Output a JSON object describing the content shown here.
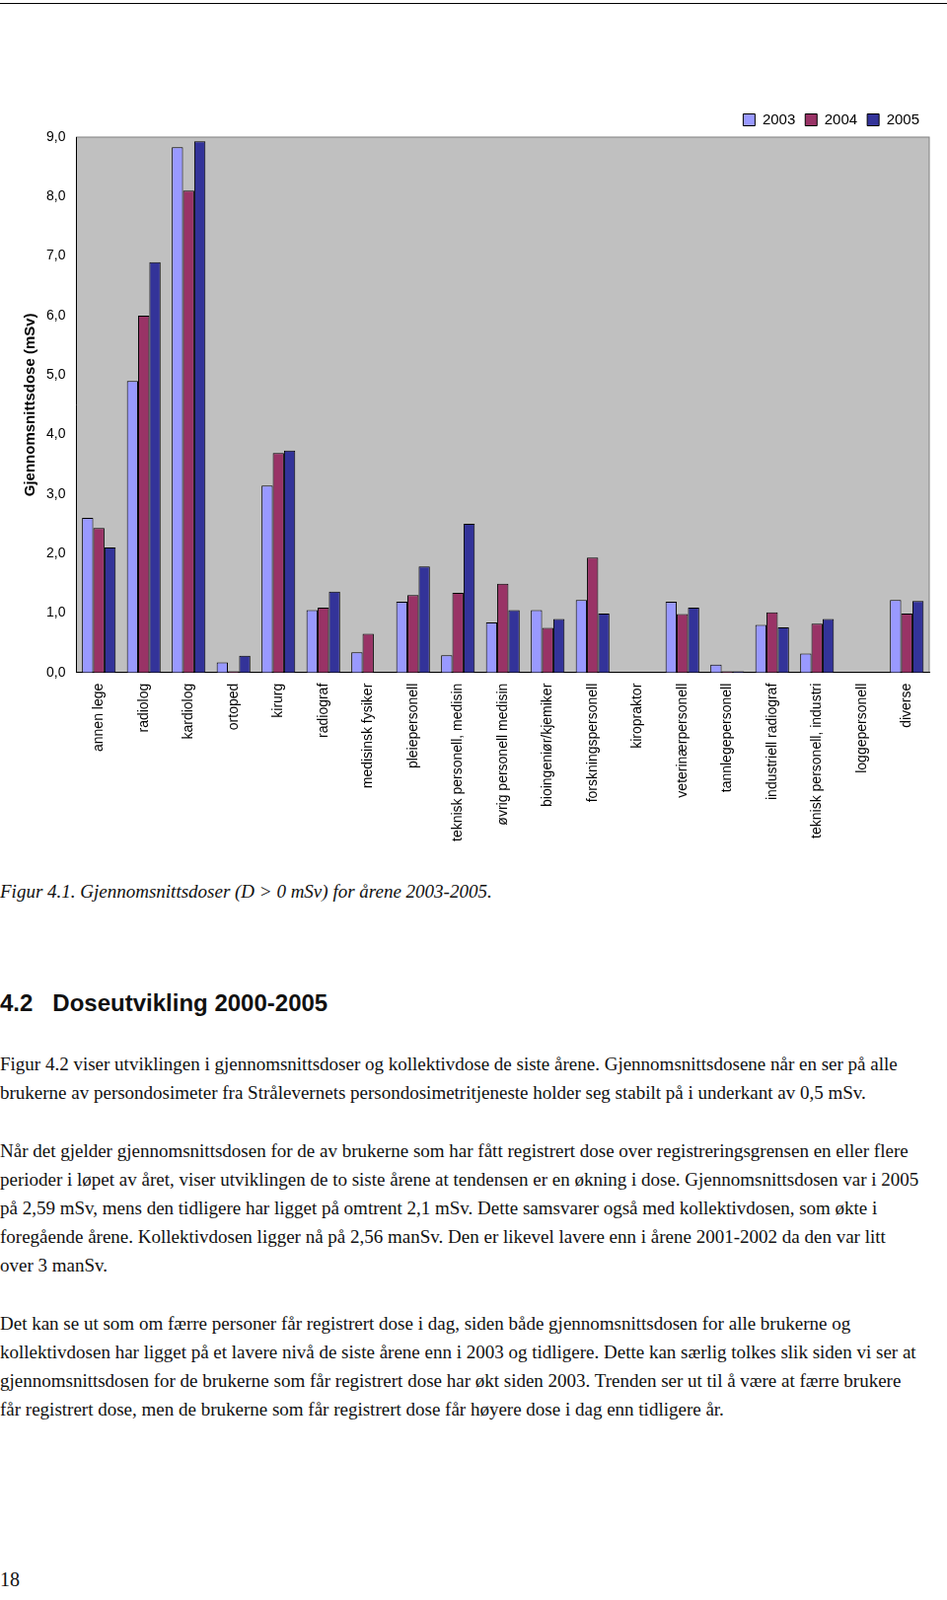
{
  "chart_data": {
    "type": "bar",
    "y_label": "Gjennomsnittsdose (mSv)",
    "categories": [
      "annen lege",
      "radiolog",
      "kardiolog",
      "ortoped",
      "kirurg",
      "radiograf",
      "medisinsk fysiker",
      "pleiepersonell",
      "teknisk personell, medisin",
      "øvrig personell medisin",
      "bioingeniør/kjemiker",
      "forskningspersonell",
      "kiropraktor",
      "veterinærpersonell",
      "tannlegepersonell",
      "industriell radiograf",
      "teknisk personell, industri",
      "loggepersonell",
      "diverse"
    ],
    "series": [
      {
        "name": "2003",
        "color": "#9999ff",
        "values": [
          2.6,
          4.9,
          8.83,
          0.17,
          3.14,
          1.05,
          0.34,
          1.19,
          0.29,
          0.84,
          1.05,
          1.22,
          0,
          1.19,
          0.13,
          0.8,
          0.32,
          0,
          1.22
        ]
      },
      {
        "name": "2004",
        "color": "#993366",
        "values": [
          2.43,
          6.0,
          8.1,
          0.02,
          3.69,
          1.09,
          0.65,
          1.3,
          1.34,
          1.49,
          0.75,
          1.93,
          0,
          0.98,
          0.02,
          1.01,
          0.82,
          0,
          0.99
        ]
      },
      {
        "name": "2005",
        "color": "#333399",
        "values": [
          2.1,
          6.9,
          8.93,
          0.28,
          3.73,
          1.36,
          0,
          1.78,
          2.5,
          1.05,
          0.9,
          0.99,
          0,
          1.09,
          0.02,
          0.76,
          0.9,
          0,
          1.2
        ]
      }
    ],
    "ylim": [
      0,
      9
    ],
    "yticks": [
      {
        "value": 0,
        "label": "0,0"
      },
      {
        "value": 1,
        "label": "1,0"
      },
      {
        "value": 2,
        "label": "2,0"
      },
      {
        "value": 3,
        "label": "3,0"
      },
      {
        "value": 4,
        "label": "4,0"
      },
      {
        "value": 5,
        "label": "5,0"
      },
      {
        "value": 6,
        "label": "6,0"
      },
      {
        "value": 7,
        "label": "7,0"
      },
      {
        "value": 8,
        "label": "8,0"
      },
      {
        "value": 9,
        "label": "9,0"
      }
    ],
    "grid": false,
    "legend": "upper right"
  },
  "document": {
    "caption": "Figur 4.1. Gjennomsnittsdoser (D > 0 mSv) for årene 2003-2005.",
    "heading": "4.2   Doseutvikling 2000-2005",
    "paragraphs": [
      "Figur 4.2 viser utviklingen i gjennomsnittsdoser og kollektivdose de siste årene. Gjennomsnittsdosene når en ser på alle brukerne av persondosimeter fra Strålevernets persondosimetritjeneste holder seg stabilt på i underkant av 0,5 mSv.",
      "Når det gjelder gjennomsnittsdosen for de av brukerne som har fått registrert dose over registreringsgrensen en eller flere perioder i løpet av året, viser utviklingen de to siste årene at tendensen er en økning i dose. Gjennomsnittsdosen var i 2005 på 2,59 mSv, mens den tidligere har ligget på omtrent 2,1 mSv. Dette samsvarer også med kollektivdosen, som økte i  foregående årene. Kollektivdosen ligger nå på 2,56 manSv. Den er likevel lavere enn i årene 2001-2002 da den var litt over 3 manSv.",
      "Det kan se ut som om færre personer får registrert dose i dag, siden både gjennomsnittsdosen for alle brukerne og kollektivdosen har ligget på et lavere nivå de siste årene enn i 2003 og tidligere. Dette kan særlig tolkes slik siden vi ser at gjennomsnittsdosen for de brukerne som får registrert dose har økt siden 2003. Trenden ser ut til å være at færre brukere får registrert dose, men de brukerne som får registrert dose får høyere dose i dag enn tidligere år."
    ],
    "page_number": "18"
  }
}
